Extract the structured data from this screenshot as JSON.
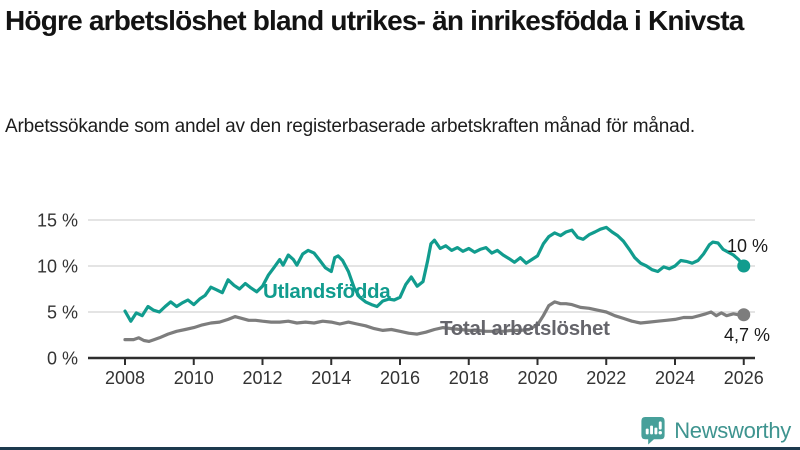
{
  "header": {
    "title": "Högre arbetslöshet bland utrikes- än inrikesfödda i Knivsta",
    "subtitle": "Arbetssökande som andel av den registerbaserade arbetskraften månad för månad."
  },
  "branding": {
    "name": "Newsworthy",
    "icon": "bar-chart-speech-bubble-icon",
    "icon_color": "#47a09a",
    "text_color": "#3e948f"
  },
  "colors": {
    "accent_teal": "#119c8e",
    "line_gray": "#7d7d7d",
    "label_gray": "#65656b",
    "grid": "#dbdbdb",
    "axis": "#2e2e2e",
    "tick_text": "#333333",
    "end_label_text": "#1a1a1a",
    "footer_bar": "#1d3a4e"
  },
  "chart_data": {
    "type": "line",
    "title": "Högre arbetslöshet bland utrikes- än inrikesfödda i Knivsta",
    "subtitle": "Arbetssökande som andel av den registerbaserade arbetskraften månad för månad.",
    "xlabel": "",
    "ylabel": "",
    "xlim": [
      2006.9,
      2026.35
    ],
    "ylim": [
      0,
      15.8
    ],
    "grid": "horizontal",
    "legend": "inline-labels",
    "x_axis": {
      "ticks": [
        2008,
        2010,
        2012,
        2014,
        2016,
        2018,
        2020,
        2022,
        2024,
        2026
      ],
      "tick_labels": [
        "2008",
        "2010",
        "2012",
        "2014",
        "2016",
        "2018",
        "2020",
        "2022",
        "2024",
        "2026"
      ]
    },
    "y_axis": {
      "ticks": [
        0,
        5,
        10,
        15
      ],
      "tick_labels": [
        "0 %",
        "5 %",
        "10 %",
        "15 %"
      ]
    },
    "series": [
      {
        "id": "utlandsfodda",
        "name": "Utlandsfödda",
        "color": "#119c8e",
        "end_label": "10 %",
        "end_value": 10.0,
        "points": [
          [
            2008.0,
            5.1
          ],
          [
            2008.17,
            4.0
          ],
          [
            2008.33,
            4.9
          ],
          [
            2008.5,
            4.6
          ],
          [
            2008.67,
            5.6
          ],
          [
            2008.83,
            5.2
          ],
          [
            2009.0,
            5.0
          ],
          [
            2009.17,
            5.6
          ],
          [
            2009.33,
            6.1
          ],
          [
            2009.5,
            5.6
          ],
          [
            2009.67,
            6.0
          ],
          [
            2009.83,
            6.3
          ],
          [
            2010.0,
            5.8
          ],
          [
            2010.17,
            6.4
          ],
          [
            2010.33,
            6.8
          ],
          [
            2010.5,
            7.7
          ],
          [
            2010.67,
            7.4
          ],
          [
            2010.83,
            7.1
          ],
          [
            2011.0,
            8.5
          ],
          [
            2011.17,
            7.9
          ],
          [
            2011.33,
            7.5
          ],
          [
            2011.5,
            8.1
          ],
          [
            2011.67,
            7.6
          ],
          [
            2011.83,
            7.2
          ],
          [
            2012.0,
            7.8
          ],
          [
            2012.17,
            9.0
          ],
          [
            2012.33,
            9.8
          ],
          [
            2012.5,
            10.7
          ],
          [
            2012.6,
            10.1
          ],
          [
            2012.75,
            11.2
          ],
          [
            2012.9,
            10.7
          ],
          [
            2013.0,
            10.1
          ],
          [
            2013.17,
            11.3
          ],
          [
            2013.33,
            11.7
          ],
          [
            2013.5,
            11.4
          ],
          [
            2013.67,
            10.6
          ],
          [
            2013.83,
            9.8
          ],
          [
            2014.0,
            9.4
          ],
          [
            2014.1,
            10.9
          ],
          [
            2014.2,
            11.1
          ],
          [
            2014.33,
            10.6
          ],
          [
            2014.5,
            9.4
          ],
          [
            2014.67,
            7.6
          ],
          [
            2014.83,
            6.6
          ],
          [
            2015.0,
            6.1
          ],
          [
            2015.17,
            5.8
          ],
          [
            2015.33,
            5.6
          ],
          [
            2015.5,
            6.2
          ],
          [
            2015.67,
            6.4
          ],
          [
            2015.83,
            6.3
          ],
          [
            2016.0,
            6.6
          ],
          [
            2016.17,
            8.0
          ],
          [
            2016.33,
            8.8
          ],
          [
            2016.5,
            7.8
          ],
          [
            2016.67,
            8.3
          ],
          [
            2016.8,
            10.5
          ],
          [
            2016.9,
            12.4
          ],
          [
            2017.0,
            12.8
          ],
          [
            2017.17,
            11.9
          ],
          [
            2017.33,
            12.2
          ],
          [
            2017.5,
            11.7
          ],
          [
            2017.67,
            12.0
          ],
          [
            2017.83,
            11.6
          ],
          [
            2018.0,
            11.9
          ],
          [
            2018.17,
            11.5
          ],
          [
            2018.33,
            11.8
          ],
          [
            2018.5,
            12.0
          ],
          [
            2018.67,
            11.4
          ],
          [
            2018.83,
            11.7
          ],
          [
            2019.0,
            11.2
          ],
          [
            2019.17,
            10.8
          ],
          [
            2019.33,
            10.4
          ],
          [
            2019.5,
            10.9
          ],
          [
            2019.67,
            10.3
          ],
          [
            2019.83,
            10.7
          ],
          [
            2020.0,
            11.1
          ],
          [
            2020.17,
            12.4
          ],
          [
            2020.33,
            13.2
          ],
          [
            2020.5,
            13.6
          ],
          [
            2020.67,
            13.3
          ],
          [
            2020.83,
            13.7
          ],
          [
            2021.0,
            13.9
          ],
          [
            2021.17,
            13.1
          ],
          [
            2021.33,
            12.9
          ],
          [
            2021.5,
            13.4
          ],
          [
            2021.67,
            13.7
          ],
          [
            2021.83,
            14.0
          ],
          [
            2022.0,
            14.2
          ],
          [
            2022.17,
            13.7
          ],
          [
            2022.33,
            13.3
          ],
          [
            2022.5,
            12.7
          ],
          [
            2022.67,
            11.8
          ],
          [
            2022.83,
            10.9
          ],
          [
            2023.0,
            10.3
          ],
          [
            2023.17,
            10.0
          ],
          [
            2023.33,
            9.6
          ],
          [
            2023.5,
            9.4
          ],
          [
            2023.67,
            9.9
          ],
          [
            2023.83,
            9.7
          ],
          [
            2024.0,
            10.0
          ],
          [
            2024.17,
            10.6
          ],
          [
            2024.33,
            10.5
          ],
          [
            2024.5,
            10.3
          ],
          [
            2024.67,
            10.6
          ],
          [
            2024.83,
            11.3
          ],
          [
            2025.0,
            12.3
          ],
          [
            2025.1,
            12.6
          ],
          [
            2025.25,
            12.5
          ],
          [
            2025.4,
            11.8
          ],
          [
            2025.55,
            11.5
          ],
          [
            2025.7,
            11.2
          ],
          [
            2025.85,
            10.7
          ],
          [
            2026.0,
            10.0
          ]
        ]
      },
      {
        "id": "total",
        "name": "Total arbetslöshet",
        "color": "#7d7d7d",
        "end_label": "4,7 %",
        "end_value": 4.7,
        "points": [
          [
            2008.0,
            2.0
          ],
          [
            2008.25,
            2.0
          ],
          [
            2008.4,
            2.2
          ],
          [
            2008.55,
            1.9
          ],
          [
            2008.7,
            1.8
          ],
          [
            2008.85,
            2.0
          ],
          [
            2009.0,
            2.2
          ],
          [
            2009.25,
            2.6
          ],
          [
            2009.5,
            2.9
          ],
          [
            2009.75,
            3.1
          ],
          [
            2010.0,
            3.3
          ],
          [
            2010.25,
            3.6
          ],
          [
            2010.5,
            3.8
          ],
          [
            2010.75,
            3.9
          ],
          [
            2011.0,
            4.2
          ],
          [
            2011.2,
            4.5
          ],
          [
            2011.4,
            4.3
          ],
          [
            2011.6,
            4.1
          ],
          [
            2011.8,
            4.1
          ],
          [
            2012.0,
            4.0
          ],
          [
            2012.25,
            3.9
          ],
          [
            2012.5,
            3.9
          ],
          [
            2012.75,
            4.0
          ],
          [
            2013.0,
            3.8
          ],
          [
            2013.25,
            3.9
          ],
          [
            2013.5,
            3.8
          ],
          [
            2013.75,
            4.0
          ],
          [
            2014.0,
            3.9
          ],
          [
            2014.25,
            3.7
          ],
          [
            2014.5,
            3.9
          ],
          [
            2014.75,
            3.7
          ],
          [
            2015.0,
            3.5
          ],
          [
            2015.25,
            3.2
          ],
          [
            2015.5,
            3.0
          ],
          [
            2015.75,
            3.1
          ],
          [
            2016.0,
            2.9
          ],
          [
            2016.25,
            2.7
          ],
          [
            2016.5,
            2.6
          ],
          [
            2016.75,
            2.8
          ],
          [
            2017.0,
            3.1
          ],
          [
            2017.25,
            3.3
          ],
          [
            2017.5,
            3.2
          ],
          [
            2017.75,
            3.1
          ],
          [
            2018.0,
            3.0
          ],
          [
            2018.25,
            3.0
          ],
          [
            2018.5,
            2.9
          ],
          [
            2018.75,
            2.9
          ],
          [
            2019.0,
            2.9
          ],
          [
            2019.25,
            3.0
          ],
          [
            2019.5,
            3.0
          ],
          [
            2019.75,
            3.1
          ],
          [
            2020.0,
            3.6
          ],
          [
            2020.17,
            4.6
          ],
          [
            2020.33,
            5.7
          ],
          [
            2020.5,
            6.1
          ],
          [
            2020.67,
            5.9
          ],
          [
            2020.83,
            5.9
          ],
          [
            2021.0,
            5.8
          ],
          [
            2021.25,
            5.5
          ],
          [
            2021.5,
            5.4
          ],
          [
            2021.75,
            5.2
          ],
          [
            2022.0,
            5.0
          ],
          [
            2022.25,
            4.6
          ],
          [
            2022.5,
            4.3
          ],
          [
            2022.75,
            4.0
          ],
          [
            2023.0,
            3.8
          ],
          [
            2023.25,
            3.9
          ],
          [
            2023.5,
            4.0
          ],
          [
            2023.75,
            4.1
          ],
          [
            2024.0,
            4.2
          ],
          [
            2024.25,
            4.4
          ],
          [
            2024.5,
            4.4
          ],
          [
            2024.7,
            4.6
          ],
          [
            2024.9,
            4.8
          ],
          [
            2025.05,
            5.0
          ],
          [
            2025.2,
            4.6
          ],
          [
            2025.35,
            4.9
          ],
          [
            2025.5,
            4.6
          ],
          [
            2025.7,
            4.8
          ],
          [
            2025.85,
            4.7
          ],
          [
            2026.0,
            4.7
          ]
        ]
      }
    ]
  }
}
